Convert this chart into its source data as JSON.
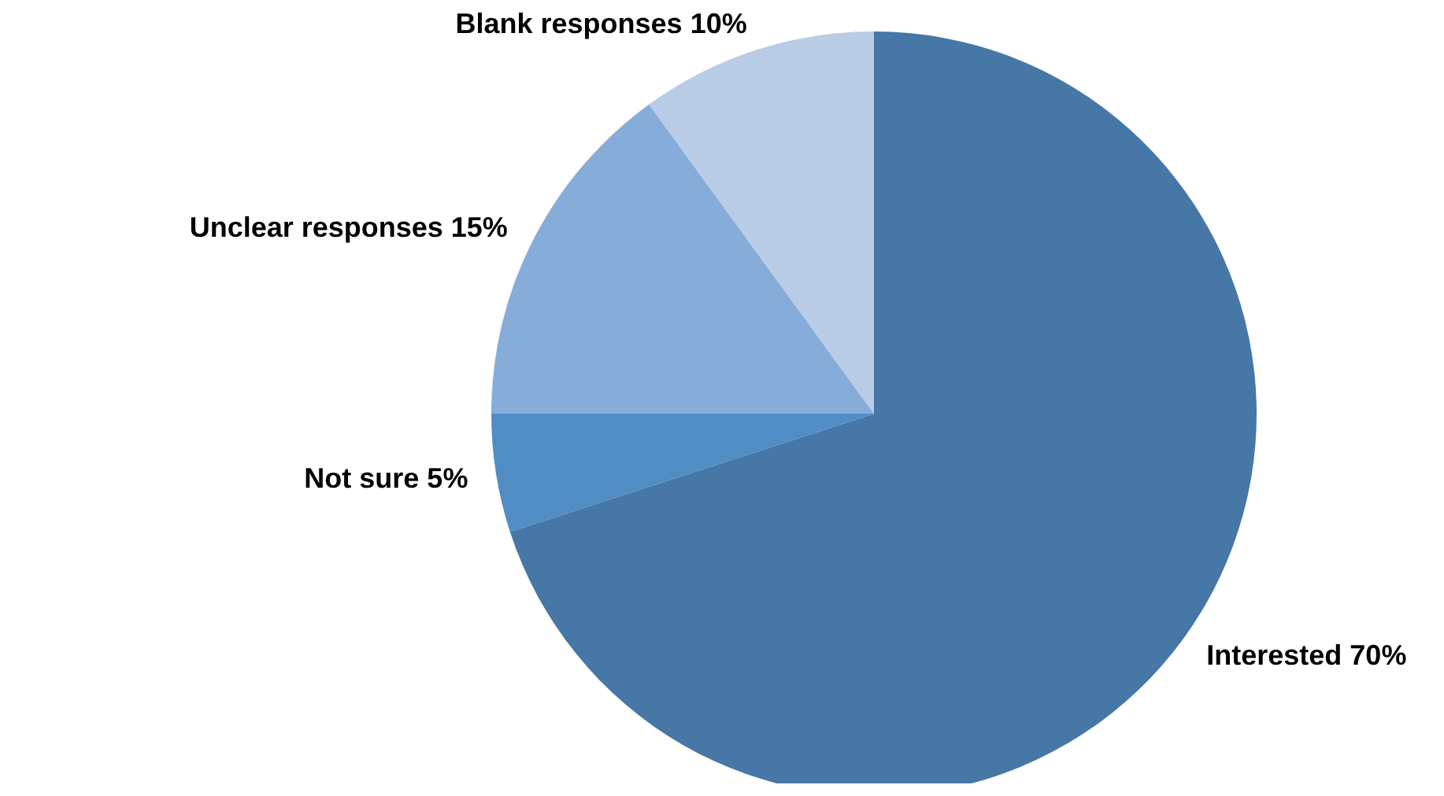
{
  "chart_data": {
    "type": "pie",
    "categories": [
      "Interested",
      "Not sure",
      "Unclear responses",
      "Blank responses"
    ],
    "values": [
      70,
      5,
      15,
      10
    ],
    "value_labels": [
      "70%",
      "5%",
      "15%",
      "10%"
    ],
    "colors": [
      "#4677a6",
      "#508dc5",
      "#86acd9",
      "#b8cce6"
    ],
    "legend": false
  }
}
